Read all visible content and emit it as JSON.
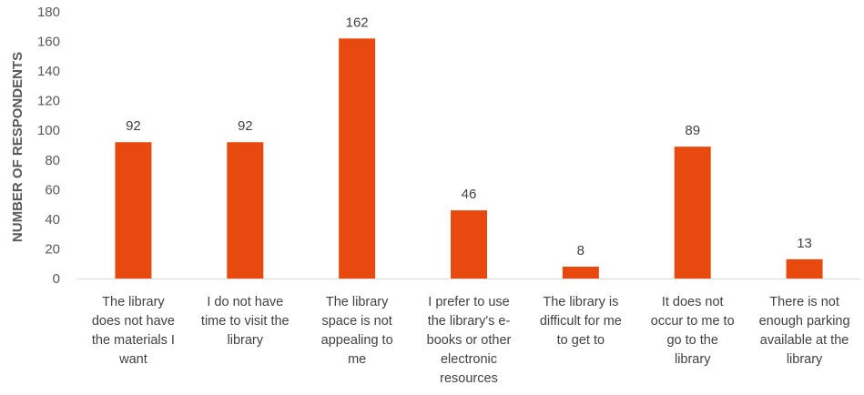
{
  "chart_data": {
    "type": "bar",
    "title": "",
    "xlabel": "",
    "ylabel": "NUMBER OF RESPONDENTS",
    "ylim": [
      0,
      180
    ],
    "yticks": [
      0,
      20,
      40,
      60,
      80,
      100,
      120,
      140,
      160,
      180
    ],
    "grid": false,
    "bar_color": "#E8490F",
    "categories": [
      "The library does not have the materials I want",
      "I do not have time to visit the library",
      "The library space is not appealing to me",
      "I prefer to use the library's e-books or other electronic resources",
      "The library is difficult for me to get to",
      "It does not occur to me to go to the library",
      "There is not enough parking available at the library"
    ],
    "category_lines": [
      [
        "The library",
        "does not have",
        "the materials I",
        "want"
      ],
      [
        "I do not have",
        "time to visit the",
        "library"
      ],
      [
        "The library",
        "space is not",
        "appealing to",
        "me"
      ],
      [
        "I prefer to use",
        "the library's e-",
        "books or other",
        "electronic",
        "resources"
      ],
      [
        "The library is",
        "difficult for me",
        "to get to"
      ],
      [
        "It does not",
        "occur to me to",
        "go to the",
        "library"
      ],
      [
        "There is not",
        "enough parking",
        "available at the",
        "library"
      ]
    ],
    "values": [
      92,
      92,
      162,
      46,
      8,
      89,
      13
    ],
    "data_labels": [
      "92",
      "92",
      "162",
      "46",
      "8",
      "89",
      "13"
    ]
  }
}
